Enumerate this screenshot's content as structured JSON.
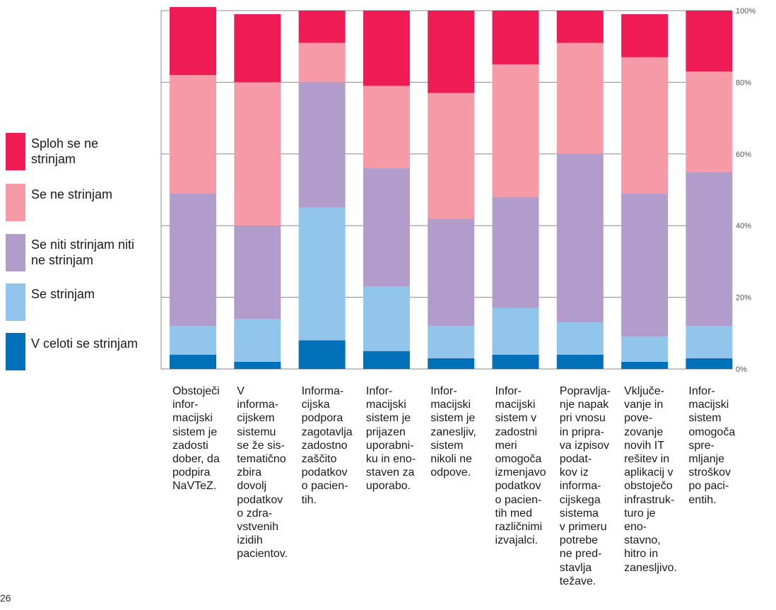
{
  "page_number": "26",
  "chart_data": {
    "type": "bar",
    "stacked": true,
    "orientation": "vertical",
    "percent": true,
    "ylim": [
      0,
      100
    ],
    "y_ticks": [
      "0%",
      "20%",
      "40%",
      "60%",
      "80%",
      "100%"
    ],
    "y_axis_side": "right",
    "grid": true,
    "legend_position": "left",
    "categories": [
      "Obstoječi\ninfor-\nmacijski\nsistem je\nzadosti\ndober, da\npodpira\nNaVTeZ.",
      "V\ninforma-\ncijskem\nsistemu\nse že sis-\ntematično\nzbira\ndovolj\npodatkov\no zdra-\nvstvenih\nizidih\npacientov.",
      "Informa-\ncijska\npodpora\nzagotavlja\nzadostno\nzaščito\npodatkov\no pacien-\ntih.",
      "Infor-\nmacijski\nsistem je\nprijazen\nuporabni-\nku in eno-\nstaven za\nuporabo.",
      "Infor-\nmacijski\nsistem je\nzanesljiv,\nsistem\nnikoli ne\nodpove.",
      "Infor-\nmacijski\nsistem v\nzadostni\nmeri\nomogoča\nizmenjavo\npodatkov\no pacien-\ntih med\nrazličnimi\nizvajalci.",
      "Popravlja-\nnje napak\npri vnosu\nin pripra-\nva izpisov\npodat-\nkov iz\ninforma-\ncijskega\nsistema\nv primeru\npotrebe\nne pred-\nstavlja\ntežave.",
      "Vključe-\nvanje in\npove-\nzovanje\nnovih IT\nrešitev in\naplikacij v\nobstoječo\ninfrastruk-\nturo je\neno-\nstavno,\nhitro in\nzanesljivo.",
      "Infor-\nmacijski\nsistem\nomogoča\nspre-\nmljanje\nstroškov\npo paci-\nentih."
    ],
    "series": [
      {
        "name": "V celoti se strinjam",
        "color": "#0071b9",
        "values": [
          4,
          2,
          8,
          5,
          3,
          4,
          4,
          2,
          3
        ]
      },
      {
        "name": "Se strinjam",
        "color": "#91c5ec",
        "values": [
          8,
          12,
          37,
          18,
          9,
          13,
          9,
          7,
          9
        ]
      },
      {
        "name": "Se niti strinjam niti ne strinjam",
        "color": "#b29ccb",
        "values": [
          37,
          26,
          35,
          33,
          30,
          31,
          47,
          40,
          43
        ]
      },
      {
        "name": "Se ne strinjam",
        "color": "#f59aa6",
        "values": [
          33,
          40,
          11,
          23,
          35,
          37,
          31,
          38,
          28
        ]
      },
      {
        "name": "Sploh se ne strinjam",
        "color": "#ef1b55",
        "values": [
          19,
          19,
          9,
          21,
          23,
          15,
          9,
          12,
          17
        ]
      }
    ],
    "legend_order": [
      {
        "name": "Sploh se ne strinjam",
        "label": "Sploh se ne\nstrinjam",
        "color": "#ef1b55"
      },
      {
        "name": "Se ne strinjam",
        "label": "Se ne strinjam",
        "color": "#f59aa6"
      },
      {
        "name": "Se niti strinjam niti ne strinjam",
        "label": "Se niti strinjam niti\nne strinjam",
        "color": "#b29ccb"
      },
      {
        "name": "Se strinjam",
        "label": "Se strinjam",
        "color": "#91c5ec"
      },
      {
        "name": "V celoti se strinjam",
        "label": "V celoti se strinjam",
        "color": "#0071b9"
      }
    ]
  }
}
